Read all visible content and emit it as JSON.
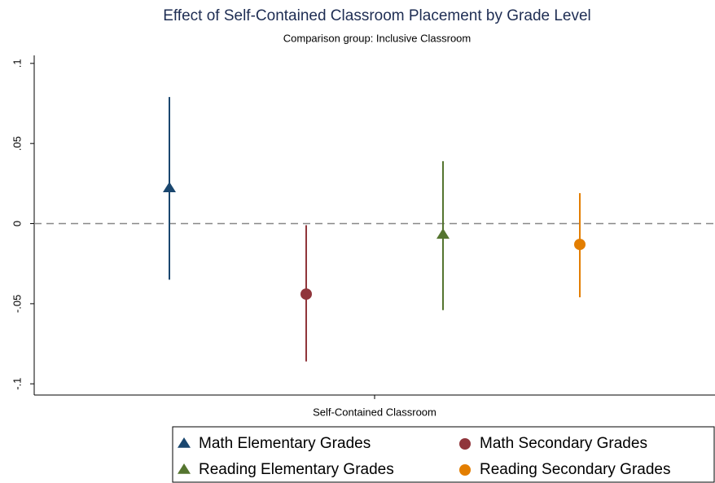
{
  "chart_data": {
    "type": "errorbar",
    "title": "Effect of Self-Contained Classroom Placement by Grade Level",
    "subtitle": "Comparison group: Inclusive Classroom",
    "categories": [
      "Self-Contained Classroom"
    ],
    "series": [
      {
        "name": "Math Elementary Grades",
        "color": "#1a476f",
        "marker": "triangle",
        "values": [
          0.022
        ],
        "ci_low": [
          -0.035
        ],
        "ci_high": [
          0.079
        ]
      },
      {
        "name": "Math Secondary Grades",
        "color": "#90353b",
        "marker": "circle",
        "values": [
          -0.044
        ],
        "ci_low": [
          -0.086
        ],
        "ci_high": [
          -0.001
        ]
      },
      {
        "name": "Reading Elementary Grades",
        "color": "#55752f",
        "marker": "triangle",
        "values": [
          -0.007
        ],
        "ci_low": [
          -0.054
        ],
        "ci_high": [
          0.039
        ]
      },
      {
        "name": "Reading Secondary Grades",
        "color": "#e37e00",
        "marker": "circle",
        "values": [
          -0.013
        ],
        "ci_low": [
          -0.046
        ],
        "ci_high": [
          0.019
        ]
      }
    ],
    "ylim": [
      -0.107,
      0.105
    ],
    "yticks": [
      {
        "value": -0.1,
        "label": "-.1"
      },
      {
        "value": -0.05,
        "label": "-.05"
      },
      0,
      {
        "value": 0.05,
        "label": ".05"
      },
      {
        "value": 0.1,
        "label": ".1"
      }
    ],
    "reference_line": 0,
    "legend": "bottom-right"
  }
}
